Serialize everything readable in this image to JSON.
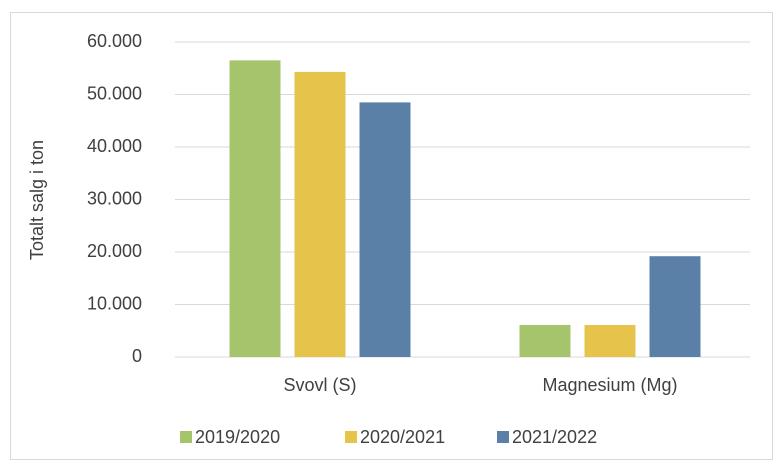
{
  "chart_data": {
    "type": "bar",
    "y_label": "Totalt salg i ton",
    "categories": [
      "Svovl (S)",
      "Magnesium (Mg)"
    ],
    "series": [
      {
        "name": "2019/2020",
        "color": "#a5c46b",
        "values": [
          56500,
          6100
        ]
      },
      {
        "name": "2020/2021",
        "color": "#e6c44c",
        "values": [
          54300,
          6100
        ]
      },
      {
        "name": "2021/2022",
        "color": "#5b80a8",
        "values": [
          48500,
          19200
        ]
      }
    ],
    "ylim": [
      0,
      60000
    ],
    "yticks": [
      0,
      {
        "value": 10000,
        "label": "10.000"
      },
      {
        "value": 20000,
        "label": "20.000"
      },
      {
        "value": 30000,
        "label": "30.000"
      },
      {
        "value": 40000,
        "label": "40.000"
      },
      {
        "value": 50000,
        "label": "50.000"
      },
      {
        "value": 60000,
        "label": "60.000"
      }
    ],
    "grid": true,
    "legend": "bottom"
  }
}
